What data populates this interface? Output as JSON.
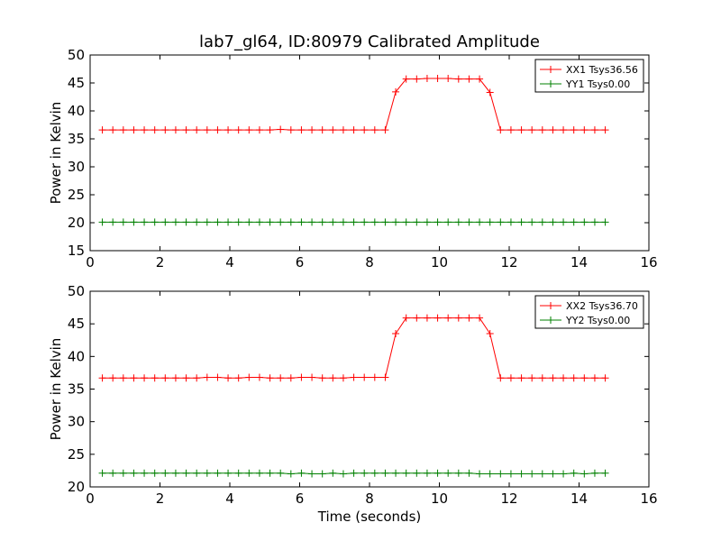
{
  "figure": {
    "title": "lab7_gl64, ID:80979 Calibrated Amplitude"
  },
  "chart_data": [
    {
      "type": "line",
      "title": "lab7_gl64, ID:80979 Calibrated Amplitude",
      "xlabel": "",
      "ylabel": "Power in Kelvin",
      "xlim": [
        0,
        16
      ],
      "ylim": [
        15,
        50
      ],
      "xticks": [
        "0",
        "2",
        "4",
        "6",
        "8",
        "10",
        "12",
        "14",
        "16"
      ],
      "yticks": [
        "15",
        "20",
        "25",
        "30",
        "35",
        "40",
        "45",
        "50"
      ],
      "grid": false,
      "legend_position": "top-right",
      "x": [
        0.35,
        0.65,
        0.95,
        1.25,
        1.55,
        1.85,
        2.15,
        2.45,
        2.75,
        3.05,
        3.35,
        3.65,
        3.95,
        4.25,
        4.55,
        4.85,
        5.15,
        5.45,
        5.75,
        6.05,
        6.35,
        6.65,
        6.95,
        7.25,
        7.55,
        7.85,
        8.15,
        8.45,
        8.75,
        9.05,
        9.35,
        9.65,
        9.95,
        10.25,
        10.55,
        10.85,
        11.15,
        11.45,
        11.75,
        12.05,
        12.35,
        12.65,
        12.95,
        13.25,
        13.55,
        13.85,
        14.15,
        14.45,
        14.75
      ],
      "series": [
        {
          "name": "XX1 Tsys36.56",
          "color": "#ff0000",
          "values": [
            36.6,
            36.6,
            36.6,
            36.6,
            36.6,
            36.6,
            36.6,
            36.6,
            36.6,
            36.6,
            36.6,
            36.6,
            36.6,
            36.6,
            36.6,
            36.6,
            36.6,
            36.7,
            36.6,
            36.6,
            36.6,
            36.6,
            36.6,
            36.6,
            36.6,
            36.6,
            36.6,
            36.6,
            43.4,
            45.7,
            45.7,
            45.8,
            45.8,
            45.8,
            45.7,
            45.7,
            45.7,
            43.3,
            36.6,
            36.6,
            36.6,
            36.6,
            36.6,
            36.6,
            36.6,
            36.6,
            36.6,
            36.6,
            36.6
          ]
        },
        {
          "name": "YY1 Tsys0.00",
          "color": "#008000",
          "values": [
            20.1,
            20.1,
            20.1,
            20.1,
            20.1,
            20.1,
            20.1,
            20.1,
            20.1,
            20.1,
            20.1,
            20.1,
            20.1,
            20.1,
            20.1,
            20.1,
            20.1,
            20.1,
            20.1,
            20.1,
            20.1,
            20.1,
            20.1,
            20.1,
            20.1,
            20.1,
            20.1,
            20.1,
            20.1,
            20.1,
            20.1,
            20.1,
            20.1,
            20.1,
            20.1,
            20.1,
            20.1,
            20.1,
            20.1,
            20.1,
            20.1,
            20.1,
            20.1,
            20.1,
            20.1,
            20.1,
            20.1,
            20.1,
            20.1
          ]
        }
      ]
    },
    {
      "type": "line",
      "title": "",
      "xlabel": "Time (seconds)",
      "ylabel": "Power in Kelvin",
      "xlim": [
        0,
        16
      ],
      "ylim": [
        20,
        50
      ],
      "xticks": [
        "0",
        "2",
        "4",
        "6",
        "8",
        "10",
        "12",
        "14",
        "16"
      ],
      "yticks": [
        "20",
        "25",
        "30",
        "35",
        "40",
        "45",
        "50"
      ],
      "grid": false,
      "legend_position": "top-right",
      "x": [
        0.35,
        0.65,
        0.95,
        1.25,
        1.55,
        1.85,
        2.15,
        2.45,
        2.75,
        3.05,
        3.35,
        3.65,
        3.95,
        4.25,
        4.55,
        4.85,
        5.15,
        5.45,
        5.75,
        6.05,
        6.35,
        6.65,
        6.95,
        7.25,
        7.55,
        7.85,
        8.15,
        8.45,
        8.75,
        9.05,
        9.35,
        9.65,
        9.95,
        10.25,
        10.55,
        10.85,
        11.15,
        11.45,
        11.75,
        12.05,
        12.35,
        12.65,
        12.95,
        13.25,
        13.55,
        13.85,
        14.15,
        14.45,
        14.75
      ],
      "series": [
        {
          "name": "XX2 Tsys36.70",
          "color": "#ff0000",
          "values": [
            36.7,
            36.7,
            36.7,
            36.7,
            36.7,
            36.7,
            36.7,
            36.7,
            36.7,
            36.7,
            36.8,
            36.8,
            36.7,
            36.7,
            36.8,
            36.8,
            36.7,
            36.7,
            36.7,
            36.8,
            36.8,
            36.7,
            36.7,
            36.7,
            36.8,
            36.8,
            36.8,
            36.8,
            43.5,
            45.9,
            45.9,
            45.9,
            45.9,
            45.9,
            45.9,
            45.9,
            45.9,
            43.5,
            36.7,
            36.7,
            36.7,
            36.7,
            36.7,
            36.7,
            36.7,
            36.7,
            36.7,
            36.7,
            36.7
          ]
        },
        {
          "name": "YY2 Tsys0.00",
          "color": "#008000",
          "values": [
            22.1,
            22.1,
            22.1,
            22.1,
            22.1,
            22.1,
            22.1,
            22.1,
            22.1,
            22.1,
            22.1,
            22.1,
            22.1,
            22.1,
            22.1,
            22.1,
            22.1,
            22.1,
            22.0,
            22.1,
            22.0,
            22.0,
            22.1,
            22.0,
            22.1,
            22.1,
            22.1,
            22.1,
            22.1,
            22.1,
            22.1,
            22.1,
            22.1,
            22.1,
            22.1,
            22.1,
            22.0,
            22.0,
            22.0,
            22.0,
            22.0,
            22.0,
            22.0,
            22.0,
            22.0,
            22.1,
            22.0,
            22.1,
            22.1
          ]
        }
      ]
    }
  ]
}
